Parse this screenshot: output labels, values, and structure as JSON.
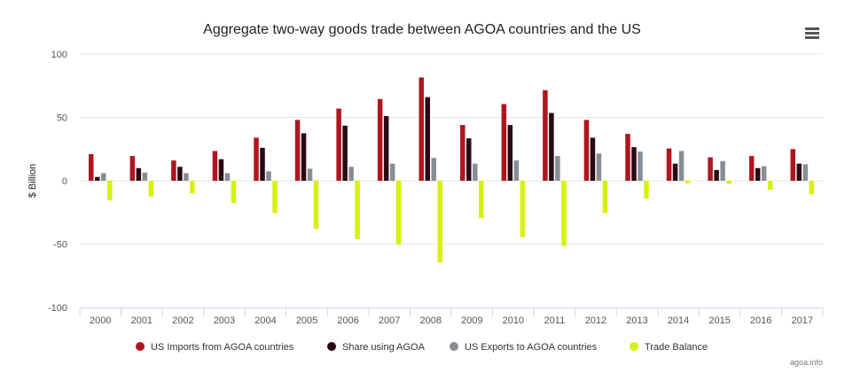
{
  "chart_data": {
    "type": "bar",
    "title": "Aggregate two-way goods trade between AGOA countries and the US",
    "xlabel": "",
    "ylabel": "$ Billion",
    "ylim": [
      -100,
      100
    ],
    "yticks": [
      100,
      50,
      0,
      -50,
      -100
    ],
    "categories": [
      "2000",
      "2001",
      "2002",
      "2003",
      "2004",
      "2005",
      "2006",
      "2007",
      "2008",
      "2009",
      "2010",
      "2011",
      "2012",
      "2013",
      "2014",
      "2015",
      "2016",
      "2017"
    ],
    "series": [
      {
        "name": "US Imports from AGOA countries",
        "color": "#b0151f",
        "values": [
          21,
          19.5,
          16,
          23.5,
          34,
          48,
          57,
          64.5,
          81.5,
          44,
          60.5,
          71.5,
          48,
          37,
          25.5,
          18.5,
          19.5,
          25
        ]
      },
      {
        "name": "Share using AGOA",
        "color": "#2a0a14",
        "values": [
          3,
          10,
          11,
          17,
          26,
          37.5,
          43.5,
          51,
          66,
          33.5,
          44,
          53.5,
          34,
          26.5,
          13.5,
          8.5,
          10,
          13.5
        ]
      },
      {
        "name": "US Exports to AGOA countries",
        "color": "#868e95",
        "values": [
          6,
          6.5,
          6,
          6,
          7.5,
          9.5,
          11,
          13.5,
          18,
          13.5,
          16,
          19.5,
          21.5,
          23,
          23.5,
          15.5,
          11.5,
          13
        ]
      },
      {
        "name": "Trade Balance",
        "color": "#d8f10f",
        "values": [
          -15.5,
          -12.5,
          -10,
          -17.5,
          -25.5,
          -38,
          -46,
          -50.5,
          -64.5,
          -29.5,
          -44.5,
          -51.5,
          -25.5,
          -14,
          -2,
          -2.5,
          -7,
          -10.5
        ]
      }
    ],
    "legend_position": "bottom-center",
    "grid": true
  },
  "credit": "agoa.info",
  "menu_icon": "hamburger-menu-icon"
}
